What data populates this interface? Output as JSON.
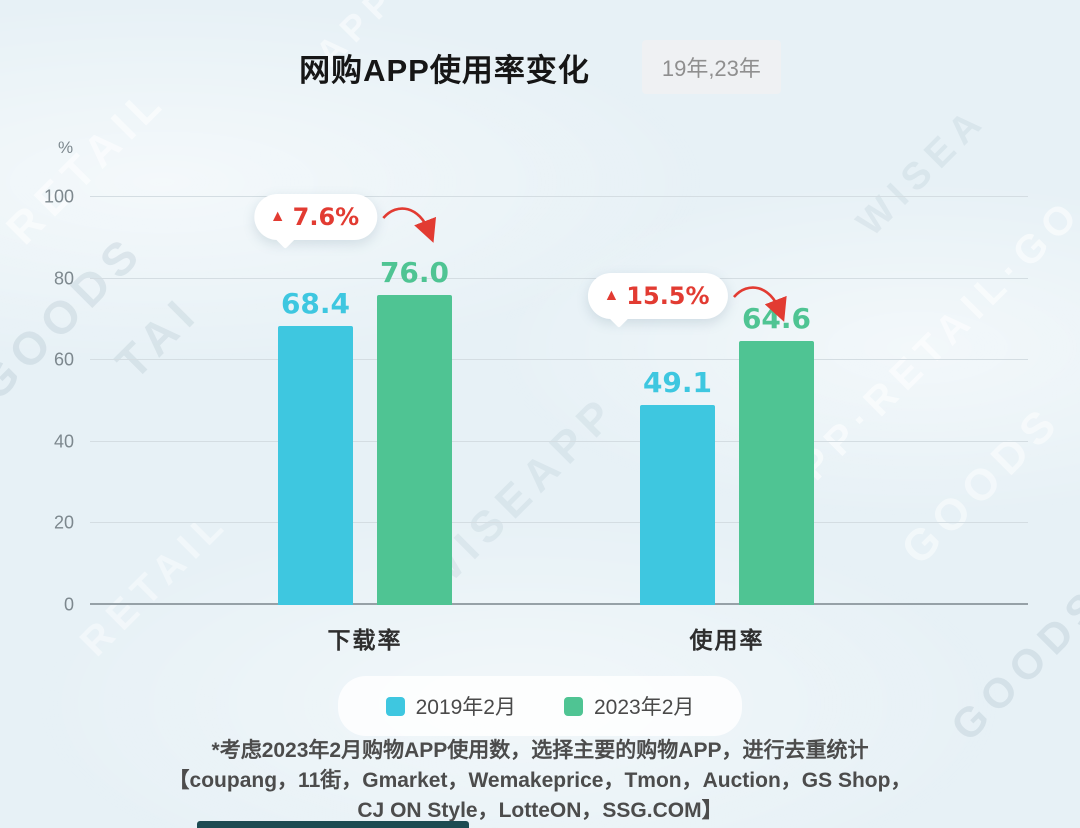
{
  "header": {
    "title": "网购APP使用率变化",
    "period_badge": "19年,23年"
  },
  "chart_data": {
    "type": "bar",
    "title": "网购APP使用率变化",
    "y_unit": "%",
    "ylim": [
      0,
      100
    ],
    "yticks": [
      0,
      20,
      40,
      60,
      80,
      100
    ],
    "grid": true,
    "legend_position": "bottom",
    "categories": [
      "下载率",
      "使用率"
    ],
    "series": [
      {
        "name": "2019年2月",
        "color": "#3EC7E0",
        "values": [
          68.4,
          49.1
        ]
      },
      {
        "name": "2023年2月",
        "color": "#4FC493",
        "values": [
          76.0,
          64.6
        ]
      }
    ],
    "annotations": [
      {
        "symbol": "▲",
        "text": "7.6%",
        "category_index": 0
      },
      {
        "symbol": "▲",
        "text": "15.5%",
        "category_index": 1
      }
    ]
  },
  "footnote": {
    "line1": "*考虑2023年2月购物APP使用数，选择主要的购物APP，进行去重统计",
    "line2": "【coupang，11街，Gmarket，Wemakeprice，Tmon，Auction，GS Shop，",
    "line3": "CJ ON Style，LotteON，SSG.COM】"
  },
  "colors": {
    "accent_red": "#E23B32",
    "series_2019": "#3EC7E0",
    "series_2023": "#4FC493",
    "background": "#E7F1F6"
  },
  "watermarks": [
    "RETAIL",
    "GOODS",
    "APP·R",
    "TAI",
    "WISEAPP",
    "APP·RETAIL·GO",
    "WISEA",
    "GOODS",
    "RETAIL",
    "GOODS"
  ]
}
